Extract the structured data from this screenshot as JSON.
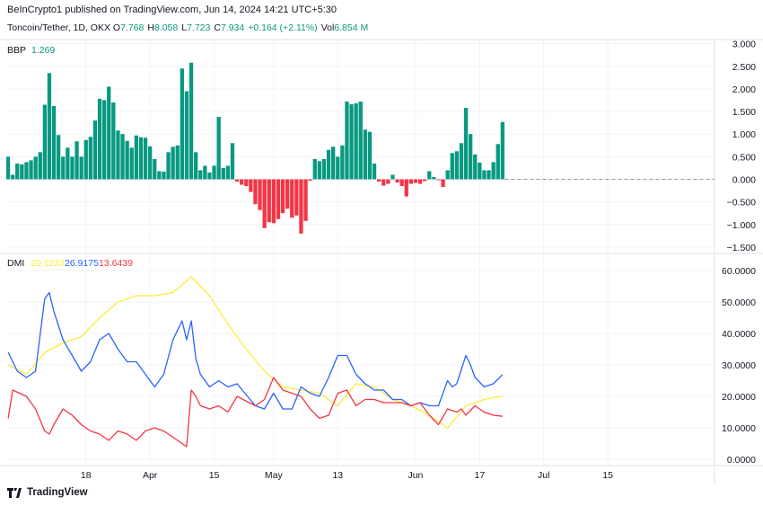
{
  "header": {
    "publish_line": "BeInCrypto1 published on TradingView.com, Jun 14, 2024 14:21 UTC+5:30",
    "symbol": "Toncoin/Tether, 1D, OKX",
    "ohlc": [
      {
        "label": "O",
        "value": "7.768"
      },
      {
        "label": "H",
        "value": "8.058"
      },
      {
        "label": "L",
        "value": "7.723"
      },
      {
        "label": "C",
        "value": "7.934"
      },
      {
        "label": "",
        "value": "+0.164 (+2.11%)"
      },
      {
        "label": "Vol",
        "value": "6.854 M"
      }
    ]
  },
  "footer": {
    "brand": "TradingView"
  },
  "colors": {
    "bull": "#089981",
    "bear": "#f23645",
    "dmi_adx": "#ffeb3b",
    "dmi_plus": "#2962ff",
    "dmi_minus": "#f23645",
    "grid": "#f0f3fa",
    "axis_text": "#131722"
  },
  "chart_data": [
    {
      "type": "bar",
      "title": "BBP",
      "legend_values": [
        "1.269"
      ],
      "y_ticks": [
        "3.000",
        "2.500",
        "2.000",
        "1.500",
        "1.000",
        "0.500",
        "0.000",
        "−0.500",
        "−1.000",
        "−1.500"
      ],
      "ylim": [
        -1.5,
        3.0
      ],
      "values": [
        0.5,
        0.1,
        0.35,
        0.33,
        0.38,
        0.42,
        0.5,
        0.6,
        1.65,
        2.35,
        1.62,
        0.98,
        0.5,
        0.7,
        0.5,
        0.84,
        0.5,
        0.87,
        0.94,
        1.3,
        1.78,
        1.75,
        2.05,
        1.7,
        1.08,
        1.0,
        0.85,
        0.7,
        0.97,
        0.93,
        0.92,
        0.73,
        0.45,
        0.18,
        0.17,
        0.6,
        0.72,
        0.75,
        2.45,
        1.95,
        2.58,
        0.6,
        0.2,
        0.3,
        0.15,
        0.3,
        1.38,
        0.25,
        0.3,
        0.8,
        -0.05,
        -0.12,
        -0.15,
        -0.28,
        -0.55,
        -0.68,
        -1.08,
        -0.95,
        -0.97,
        -0.88,
        -0.75,
        -0.65,
        -0.85,
        -0.8,
        -1.2,
        -0.92,
        -0.03,
        0.45,
        0.4,
        0.45,
        0.65,
        0.72,
        0.5,
        0.75,
        1.72,
        1.66,
        1.68,
        1.72,
        1.1,
        1.05,
        0.35,
        -0.05,
        -0.14,
        -0.1,
        0.1,
        -0.07,
        -0.15,
        -0.38,
        -0.1,
        -0.08,
        -0.1,
        -0.04,
        0.18,
        0.05,
        -0.02,
        -0.17,
        0.2,
        0.58,
        0.62,
        0.8,
        1.58,
        1.0,
        0.55,
        0.37,
        0.2,
        0.2,
        0.38,
        0.78,
        1.269
      ],
      "forecast_baseline": "dashed-zero"
    },
    {
      "type": "line",
      "title": "DMI",
      "legend_values": [
        "20.1233",
        "26.9175",
        "13.6439"
      ],
      "y_ticks": [
        "60.0000",
        "50.0000",
        "40.0000",
        "30.0000",
        "20.0000",
        "10.0000",
        "0.0000"
      ],
      "ylim": [
        0,
        60
      ],
      "series": [
        {
          "color_key": "dmi_adx",
          "x": [
            0,
            4,
            8,
            12,
            16,
            20,
            24,
            28,
            32,
            36,
            40,
            44,
            48,
            52,
            56,
            60,
            64,
            68,
            72,
            76,
            80,
            84,
            88,
            92,
            96,
            100,
            104,
            108
          ],
          "values": [
            30,
            27,
            34,
            37,
            39,
            45,
            50,
            52,
            52,
            53,
            58,
            52,
            43,
            35,
            28,
            23,
            22,
            21,
            17,
            24,
            23,
            19,
            17,
            14,
            10,
            17,
            19,
            20.1233
          ]
        },
        {
          "color_key": "dmi_plus",
          "x": [
            0,
            2,
            4,
            6,
            8,
            9,
            10,
            12,
            14,
            16,
            18,
            20,
            22,
            24,
            26,
            28,
            30,
            32,
            34,
            36,
            38,
            39,
            40,
            41,
            42,
            44,
            46,
            48,
            50,
            54,
            56,
            58,
            60,
            62,
            64,
            66,
            68,
            70,
            72,
            74,
            76,
            78,
            80,
            82,
            84,
            86,
            88,
            90,
            92,
            94,
            96,
            97,
            98,
            100,
            101,
            102,
            104,
            106,
            108
          ],
          "values": [
            34,
            28,
            26,
            28,
            51,
            53,
            47,
            38,
            33,
            28,
            31,
            38,
            40,
            35,
            31,
            31,
            27,
            23,
            27,
            38,
            44,
            38,
            44,
            32,
            27,
            23,
            25,
            23,
            24,
            17,
            16,
            21,
            16,
            16,
            23,
            21,
            20,
            26,
            33,
            33,
            27,
            24,
            22,
            22,
            19,
            19,
            17,
            18,
            17,
            17,
            25,
            23,
            24,
            33,
            30,
            26,
            23,
            24,
            26.9175
          ]
        },
        {
          "color_key": "dmi_minus",
          "x": [
            0,
            1,
            4,
            6,
            8,
            9,
            10,
            12,
            14,
            16,
            18,
            20,
            22,
            24,
            26,
            28,
            30,
            32,
            34,
            36,
            38,
            39,
            40,
            41,
            42,
            44,
            46,
            48,
            50,
            54,
            56,
            58,
            60,
            62,
            64,
            66,
            68,
            70,
            72,
            74,
            76,
            78,
            80,
            82,
            84,
            86,
            88,
            90,
            92,
            94,
            96,
            98,
            99,
            100,
            102,
            104,
            106,
            108
          ],
          "values": [
            13,
            22,
            20,
            16,
            9,
            8,
            11,
            16,
            14,
            11,
            9,
            8,
            6,
            9,
            8,
            6,
            9,
            10,
            9,
            7,
            5,
            4,
            22,
            20,
            17,
            16,
            17,
            15,
            20,
            17,
            19,
            26,
            22,
            21,
            20,
            16,
            13,
            14,
            21,
            22,
            17,
            19,
            19,
            18,
            18,
            18,
            17,
            18,
            14,
            11,
            16,
            15,
            16,
            14,
            17,
            15,
            14,
            13.6439
          ]
        }
      ]
    }
  ],
  "x_axis": {
    "labels": [
      "18",
      "Apr",
      "15",
      "May",
      "13",
      "Jun",
      "17",
      "Jul",
      "15"
    ],
    "label_bar_index": [
      17,
      31,
      45,
      58,
      72,
      89,
      103,
      117,
      131
    ]
  }
}
